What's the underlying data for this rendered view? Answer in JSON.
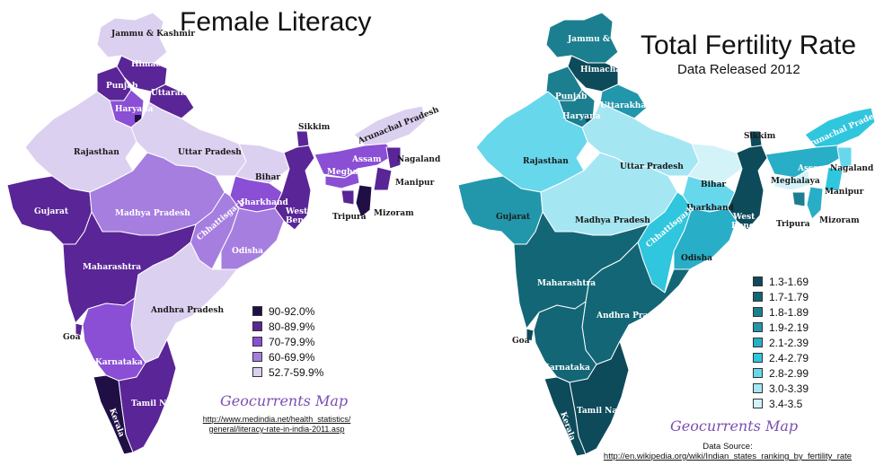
{
  "left_map": {
    "title": "Female Literacy",
    "legend": [
      {
        "label": "90-92.0%",
        "color": "#1f0f45"
      },
      {
        "label": "80-89.9%",
        "color": "#5a2596"
      },
      {
        "label": "70-79.9%",
        "color": "#8a4fd4"
      },
      {
        "label": "60-69.9%",
        "color": "#a67ee0"
      },
      {
        "label": "52.7-59.9%",
        "color": "#dcd0f0"
      }
    ],
    "credit": "Geocurrents Map",
    "source_line1": "http://www.medindia.net/health_statistics/",
    "source_line2": "general/literacy-rate-in-india-2011.asp",
    "states": {
      "jammu_kashmir": "Jammu & Kashmir",
      "himachal": "Himachal Pradesh",
      "punjab": "Punjab",
      "uttarakhand": "Uttarakhand",
      "haryana": "Haryana",
      "rajasthan": "Rajasthan",
      "uttar_pradesh": "Uttar Pradesh",
      "bihar": "Bihar",
      "sikkim": "Sikkim",
      "arunachal": "Arunachal Pradesh",
      "assam": "Assam",
      "meghalaya": "Meghalaya",
      "nagaland": "Nagaland",
      "manipur": "Manipur",
      "mizoram": "Mizoram",
      "tripura": "Tripura",
      "gujarat": "Gujarat",
      "madhya_pradesh": "Madhya Pradesh",
      "jharkhand": "Jharkhand",
      "west_bengal": "West Bengal",
      "chhattisgarh": "Chhattisgarh",
      "odisha": "Odisha",
      "maharashtra": "Maharashtra",
      "andhra": "Andhra Pradesh",
      "goa": "Goa",
      "karnataka": "Karnataka",
      "tamil_nadu": "Tamil Nadu",
      "kerala": "Kerala"
    }
  },
  "right_map": {
    "title": "Total Fertility Rate",
    "subtitle": "Data Released 2012",
    "legend": [
      {
        "label": "1.3-1.69",
        "color": "#0d4a5a"
      },
      {
        "label": "1.7-1.79",
        "color": "#136676"
      },
      {
        "label": "1.8-1.89",
        "color": "#1b7f90"
      },
      {
        "label": "1.9-2.19",
        "color": "#2297ab"
      },
      {
        "label": "2.1-2.39",
        "color": "#28aec6"
      },
      {
        "label": "2.4-2.79",
        "color": "#30c6de"
      },
      {
        "label": "2.8-2.99",
        "color": "#67d7ec"
      },
      {
        "label": "3.0-3.39",
        "color": "#a5e6f3"
      },
      {
        "label": "3.4-3.5",
        "color": "#d3f3f8"
      }
    ],
    "credit": "Geocurrents Map",
    "source_line1": "Data Source:",
    "source_line2": "http://en.wikipedia.org/wiki/Indian_states_ranking_by_fertility_rate",
    "states": {
      "jammu_kashmir": "Jammu & Kashmir",
      "himachal": "Himachal Pradesh",
      "punjab": "Punjab",
      "uttarakhand": "Uttarakhand",
      "haryana": "Haryana",
      "rajasthan": "Rajasthan",
      "uttar_pradesh": "Uttar Pradesh",
      "bihar": "Bihar",
      "sikkim": "Sikkim",
      "arunachal": "Arunachal Pradesh",
      "assam": "Assam",
      "meghalaya": "Meghalaya",
      "nagaland": "Nagaland",
      "manipur": "Manipur",
      "mizoram": "Mizoram",
      "tripura": "Tripura",
      "gujarat": "Gujarat",
      "madhya_pradesh": "Madhya Pradesh",
      "jharkhand": "Jharkhand",
      "west_bengal": "West Bengal",
      "chhattisgarh": "Chhattisgarh",
      "odisha": "Odisha",
      "maharashtra": "Maharashtra",
      "andhra": "Andhra Pradesh",
      "goa": "Goa",
      "karnataka": "Karnataka",
      "tamil_nadu": "Tamil Nadu",
      "kerala": "Kerala"
    }
  }
}
